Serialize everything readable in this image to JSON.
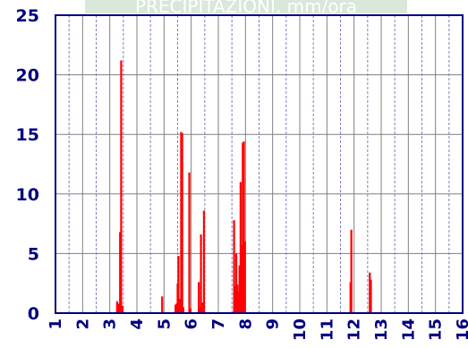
{
  "chart_data": {
    "type": "bar",
    "title": "PRECIPITAZIONI, mm/ora",
    "xlabel": "",
    "ylabel": "",
    "xlim": [
      1,
      16
    ],
    "ylim": [
      0,
      25
    ],
    "x_ticks": [
      "1",
      "2",
      "3",
      "4",
      "5",
      "6",
      "7",
      "8",
      "9",
      "10",
      "11",
      "12",
      "13",
      "14",
      "15",
      "16"
    ],
    "y_ticks": [
      "0",
      "5",
      "10",
      "15",
      "20",
      "25"
    ],
    "grid": true,
    "x_grid_step": 0.5,
    "legend": "none",
    "colors": {
      "bars": "#ff0000",
      "axes": "#000080",
      "grid_major": "#808080",
      "grid_minor": "#8080c0",
      "title_background": "#d9e8d9",
      "title_text": "#ffffff"
    },
    "series": [
      {
        "x": [
          3.27,
          3.33,
          3.38,
          3.42,
          3.47,
          4.93,
          5.42,
          5.46,
          5.5,
          5.53,
          5.58,
          5.63,
          5.67,
          5.71,
          5.93,
          5.97,
          6.28,
          6.32,
          6.36,
          6.4,
          6.47,
          7.58,
          7.62,
          7.66,
          7.7,
          7.74,
          7.78,
          7.82,
          7.86,
          7.9,
          7.94,
          7.98,
          11.87,
          11.9,
          12.58,
          12.62
        ],
        "values": [
          1,
          0.8,
          6.8,
          21.2,
          0.6,
          1.4,
          0.7,
          0.8,
          2.5,
          4.8,
          1.2,
          15.2,
          15.1,
          0.5,
          11.8,
          0.4,
          2.6,
          0.5,
          6.6,
          0.9,
          8.6,
          7.8,
          2.3,
          5.0,
          2.4,
          1.8,
          4.0,
          11.0,
          5.7,
          14.3,
          14.4,
          6.0,
          2.6,
          7.0,
          3.4,
          2.8
        ]
      }
    ]
  }
}
